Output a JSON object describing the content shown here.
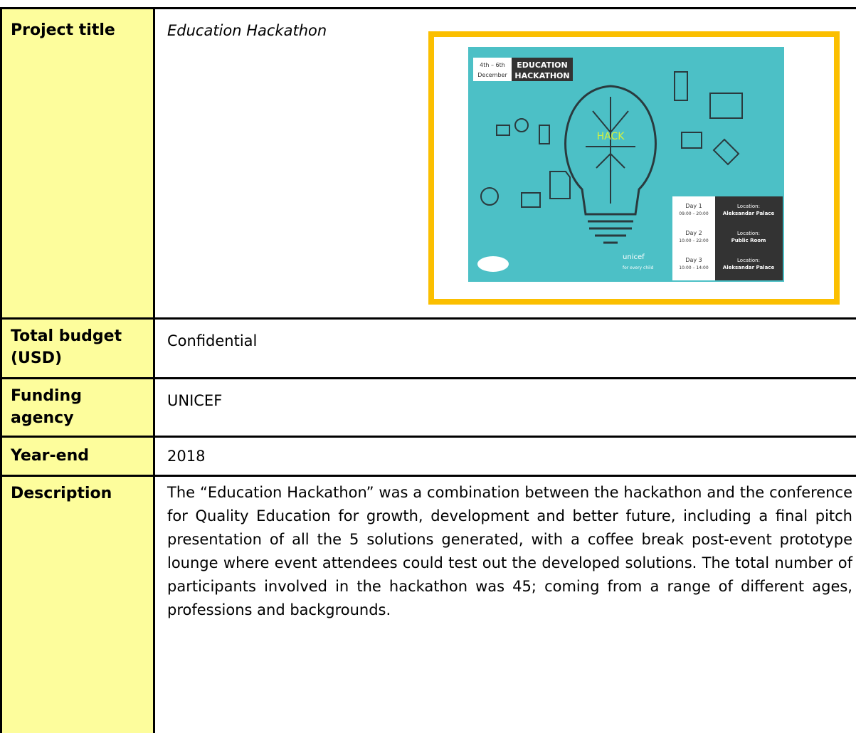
{
  "table": {
    "rows": [
      {
        "label": "Project title",
        "value": "Education Hackathon"
      },
      {
        "label": "Total budget (USD)",
        "value": "Confidential"
      },
      {
        "label": "Funding agency",
        "value": "UNICEF"
      },
      {
        "label": "Year-end",
        "value": "2018"
      },
      {
        "label": "Description",
        "value": "The “Education Hackathon” was a combination between the hackathon and the conference for Quality Education for growth, development and better future, including a final pitch presentation of all the 5 solutions generated, with a coffee break post-event prototype lounge where event attendees could test out the developed solutions. The total number of participants involved in the hackathon was 45; coming from a range of different ages, professions and backgrounds."
      }
    ]
  },
  "poster": {
    "dates": [
      "4th – 6th",
      "December"
    ],
    "title": [
      "EDUCATION",
      "HACKATHON"
    ],
    "hack": "HACK",
    "schedule": [
      {
        "day": "Day 1",
        "time": "09:00 – 20:00",
        "location": "Location:",
        "place": "Aleksandar Palace"
      },
      {
        "day": "Day 2",
        "time": "10:00 – 22:00",
        "location": "Location:",
        "place": "Public Room"
      },
      {
        "day": "Day 3",
        "time": "10:00 – 14:00",
        "location": "Location:",
        "place": "Aleksandar Palace"
      }
    ],
    "sponsor": "unicef",
    "tagline": "for every child"
  }
}
